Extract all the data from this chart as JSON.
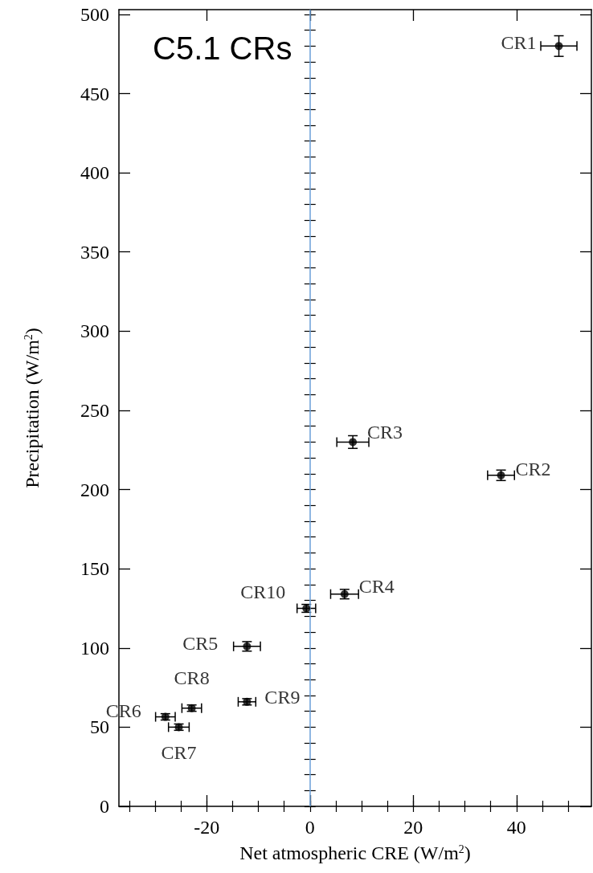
{
  "chart_data": {
    "type": "scatter",
    "xlabel": "Net atmospheric CRE (W/m$^{2}$)",
    "ylabel": "Precipitation (W/m$^{2}$)",
    "x": [
      48.2,
      37.0,
      8.3,
      6.7,
      -12.2,
      -28.0,
      -25.4,
      -22.9,
      -12.2,
      -0.7
    ],
    "values": [
      480,
      209,
      230,
      134,
      101,
      56.5,
      50,
      62,
      66,
      125
    ],
    "errors": [
      6.5,
      3.3,
      4,
      3,
      3,
      2,
      2,
      2,
      2,
      2.5
    ],
    "xerrors": [
      3.5,
      2.6,
      3.1,
      2.7,
      2.6,
      1.9,
      2,
      1.9,
      1.7,
      1.8
    ],
    "color": "#000000",
    "marker": "circle",
    "xlim": [
      -37,
      54.5
    ],
    "xticks": [
      -20,
      0,
      20,
      40
    ],
    "ylim": [
      0,
      503
    ],
    "yticks": [
      0,
      50,
      100,
      150,
      200,
      250,
      300,
      350,
      400,
      450,
      500
    ],
    "grid": false,
    "ref_lines": [
      {
        "axis": "x",
        "value": 0,
        "color": "#6a9fd8",
        "line_style": "solid"
      }
    ],
    "annotations": [
      "C5.1 CRs",
      {
        "text": "CR1",
        "x": 48.2,
        "y": 480
      },
      {
        "text": "CR2",
        "x": 37.0,
        "y": 209
      },
      {
        "text": "CR3",
        "x": 8.3,
        "y": 230
      },
      {
        "text": "CR4",
        "x": 6.7,
        "y": 134
      },
      {
        "text": "CR5",
        "x": -12.2,
        "y": 101
      },
      {
        "text": "CR6",
        "x": -28.0,
        "y": 56.5
      },
      {
        "text": "CR7",
        "x": -25.4,
        "y": 50
      },
      {
        "text": "CR8",
        "x": -22.9,
        "y": 62
      },
      {
        "text": "CR9",
        "x": -12.2,
        "y": 66
      },
      {
        "text": "CR10",
        "x": -0.7,
        "y": 125
      }
    ]
  }
}
